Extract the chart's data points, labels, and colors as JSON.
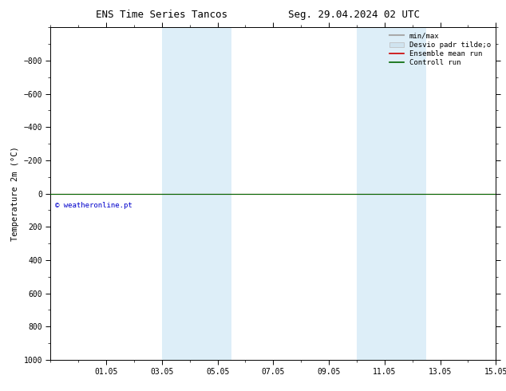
{
  "title_left": "ENS Time Series Tancos",
  "title_right": "Seg. 29.04.2024 02 UTC",
  "ylabel": "Temperature 2m (°C)",
  "watermark": "© weatheronline.pt",
  "watermark_color": "#0000cc",
  "background_color": "#ffffff",
  "plot_bg_color": "#ffffff",
  "ylim_bottom": 1000,
  "ylim_top": -1000,
  "y_ticks": [
    -800,
    -600,
    -400,
    -200,
    0,
    200,
    400,
    600,
    800,
    1000
  ],
  "x_min": 0,
  "x_max": 16,
  "x_tick_labels": [
    "01.05",
    "03.05",
    "05.05",
    "07.05",
    "09.05",
    "11.05",
    "13.05",
    "15.05"
  ],
  "x_tick_positions": [
    2,
    4,
    6,
    8,
    10,
    12,
    14,
    16
  ],
  "shaded_bands": [
    {
      "x_start": 4.0,
      "x_end": 5.0,
      "color": "#ddeef8"
    },
    {
      "x_start": 5.0,
      "x_end": 6.5,
      "color": "#ddeef8"
    },
    {
      "x_start": 11.0,
      "x_end": 12.0,
      "color": "#ddeef8"
    },
    {
      "x_start": 12.0,
      "x_end": 13.5,
      "color": "#ddeef8"
    }
  ],
  "control_run_color": "#006600",
  "ensemble_mean_color": "#cc0000",
  "minmax_color": "#aaaaaa",
  "desvio_color": "#d0e4f0",
  "legend_labels": [
    "min/max",
    "Desvio padr tilde;o",
    "Ensemble mean run",
    "Controll run"
  ],
  "legend_colors": [
    "#aaaaaa",
    "#d0e4f0",
    "#cc0000",
    "#006600"
  ],
  "title_fontsize": 9,
  "axis_fontsize": 7.5,
  "tick_fontsize": 7,
  "legend_fontsize": 6.5
}
